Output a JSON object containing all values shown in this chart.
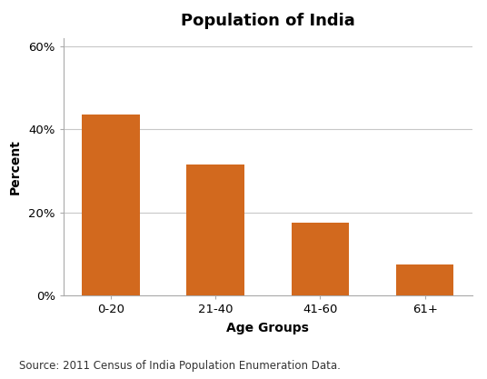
{
  "title": "Population of India",
  "categories": [
    "0-20",
    "21-40",
    "41-60",
    "61+"
  ],
  "values": [
    0.435,
    0.315,
    0.175,
    0.075
  ],
  "bar_color": "#D2691E",
  "xlabel": "Age Groups",
  "ylabel": "Percent",
  "ylim": [
    0,
    0.62
  ],
  "yticks": [
    0,
    0.2,
    0.4,
    0.6
  ],
  "ytick_labels": [
    "0%",
    "20%",
    "40%",
    "60%"
  ],
  "source_text": "Source: 2011 Census of India Population Enumeration Data.",
  "title_fontsize": 13,
  "axis_label_fontsize": 10,
  "tick_fontsize": 9.5,
  "source_fontsize": 8.5,
  "bar_width": 0.55,
  "background_color": "#ffffff",
  "grid_color": "#c8c8c8",
  "spine_color": "#aaaaaa"
}
